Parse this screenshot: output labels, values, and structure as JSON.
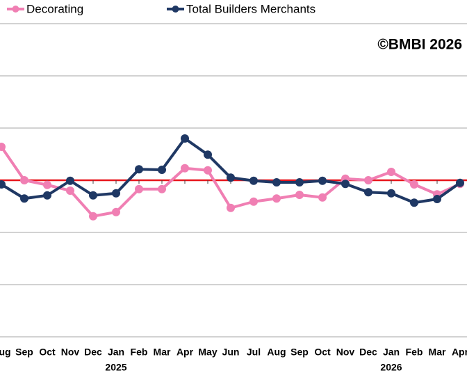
{
  "chart_data": {
    "type": "line",
    "copyright": "©BMBI 2026",
    "categories": [
      "Aug",
      "Sep",
      "Oct",
      "Nov",
      "Dec",
      "Jan",
      "Feb",
      "Mar",
      "Apr",
      "May",
      "Jun",
      "Jul",
      "Aug",
      "Sep",
      "Oct",
      "Nov",
      "Dec",
      "Jan",
      "Feb",
      "Mar",
      "Apr"
    ],
    "year_row": [
      null,
      null,
      null,
      null,
      null,
      "2025",
      null,
      null,
      null,
      null,
      null,
      null,
      null,
      null,
      null,
      null,
      null,
      "2026",
      null,
      null,
      null
    ],
    "series": [
      {
        "name": "Decorating",
        "color": "#f07fb3",
        "values": [
          106.4,
          100,
          99.1,
          98,
          93.1,
          93.9,
          98.3,
          98.3,
          102.3,
          101.9,
          94.7,
          95.9,
          96.5,
          97.2,
          96.7,
          100.3,
          100,
          101.6,
          99.2,
          97.3,
          99.3
        ]
      },
      {
        "name": "Total Builders Merchants",
        "color": "#1f3864",
        "values": [
          99.2,
          96.5,
          97.1,
          99.9,
          97.1,
          97.5,
          102.1,
          102,
          108,
          104.9,
          100.5,
          99.9,
          99.6,
          99.6,
          99.9,
          99.3,
          97.7,
          97.5,
          95.7,
          96.4,
          99.5
        ]
      }
    ],
    "ylim": [
      70,
      130
    ],
    "yticks": [
      70,
      80,
      90,
      100,
      110,
      120,
      130
    ],
    "grid": true,
    "reference": 100,
    "reference_color": "#e8141b"
  }
}
